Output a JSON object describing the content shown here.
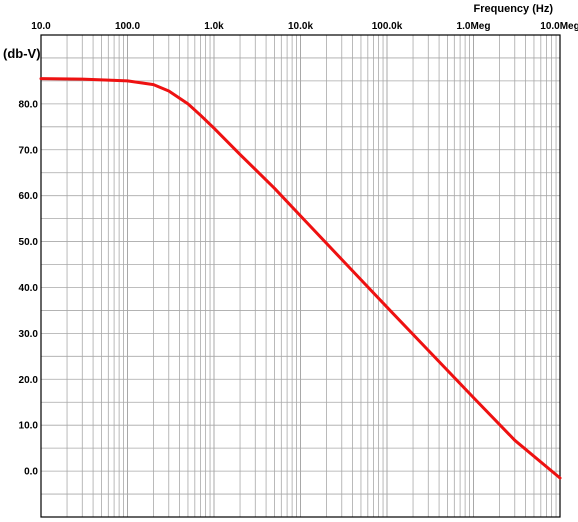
{
  "chart_data": {
    "type": "line",
    "xlabel": "Frequency  (Hz)",
    "ylabel": "(db-V)",
    "x_scale": "log",
    "xlim": [
      10,
      10000000
    ],
    "ylim": [
      -10,
      95
    ],
    "x_ticks": [
      10,
      100,
      1000,
      10000,
      100000,
      1000000,
      10000000
    ],
    "x_tick_labels": [
      "10.0",
      "100.0",
      "1.0k",
      "10.0k",
      "100.0k",
      "1.0Meg",
      "10.0Meg"
    ],
    "y_ticks": [
      0,
      10,
      20,
      30,
      40,
      50,
      60,
      70,
      80
    ],
    "y_tick_labels": [
      "0.0",
      "10.0",
      "20.0",
      "30.0",
      "40.0",
      "50.0",
      "60.0",
      "70.0",
      "80.0"
    ],
    "grid": true,
    "colors": {
      "line": "#ee1111",
      "grid": "#a8a8a8",
      "frame": "#000000"
    },
    "series": [
      {
        "x": [
          10,
          30,
          100,
          200,
          300,
          500,
          700,
          1000,
          2000,
          5000,
          10000,
          30000,
          100000,
          300000,
          1000000,
          3000000,
          10000000
        ],
        "values": [
          85.5,
          85.4,
          85.0,
          84.2,
          82.8,
          80.0,
          77.5,
          74.7,
          69.0,
          61.6,
          55.6,
          46.1,
          35.7,
          26.3,
          16.0,
          6.7,
          -1.5
        ]
      }
    ]
  }
}
